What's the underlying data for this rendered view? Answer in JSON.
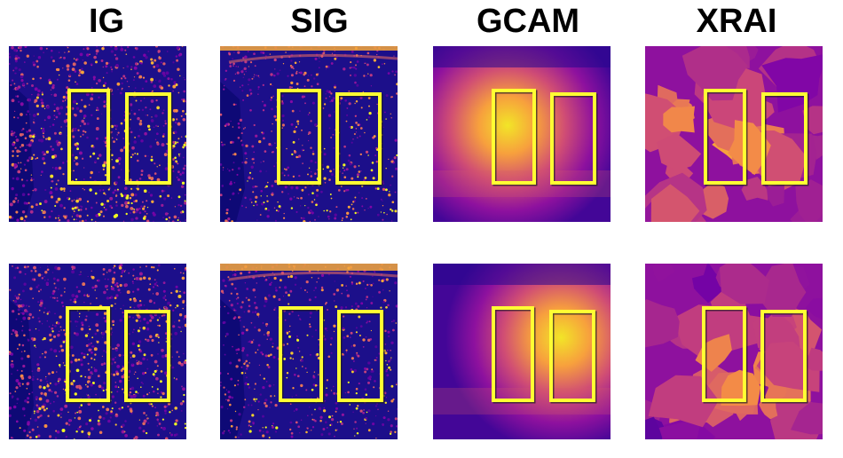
{
  "titles": [
    "IG",
    "SIG",
    "GCAM",
    "XRAI"
  ],
  "methods": [
    {
      "id": "ig",
      "title_index": 0,
      "style": "speckle-dense"
    },
    {
      "id": "sig",
      "title_index": 1,
      "style": "speckle-sparse"
    },
    {
      "id": "gcam",
      "title_index": 2,
      "style": "smooth-blob"
    },
    {
      "id": "xrai",
      "title_index": 3,
      "style": "segments"
    }
  ],
  "rows": [
    {
      "id": "sample-1"
    },
    {
      "id": "sample-2"
    }
  ],
  "colors": {
    "background": "#ffffff",
    "title": "#000000",
    "colormap_low": "#0d0887",
    "colormap_mid": "#cc4778",
    "colormap_high": "#f0f921",
    "box_outline": "#ffff33",
    "box_shadow": "#202020"
  }
}
